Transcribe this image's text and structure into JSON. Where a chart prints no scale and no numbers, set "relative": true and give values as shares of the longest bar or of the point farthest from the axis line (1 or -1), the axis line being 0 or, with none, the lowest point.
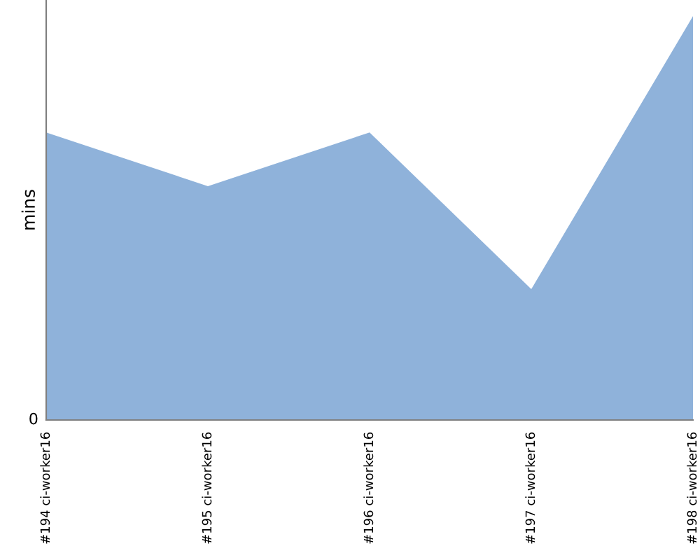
{
  "chart_data": {
    "type": "area",
    "relative": true,
    "ylabel": "mins",
    "categories": [
      "#194 ci-worker16",
      "#195 ci-worker16",
      "#196 ci-worker16",
      "#197 ci-worker16",
      "#198 ci-worker16"
    ],
    "series": [
      {
        "color": "#8fb2da",
        "values": [
          0.712,
          0.579,
          0.712,
          0.324,
          1
        ]
      }
    ],
    "annotations": [
      "0"
    ],
    "grid": false,
    "legend": false
  }
}
